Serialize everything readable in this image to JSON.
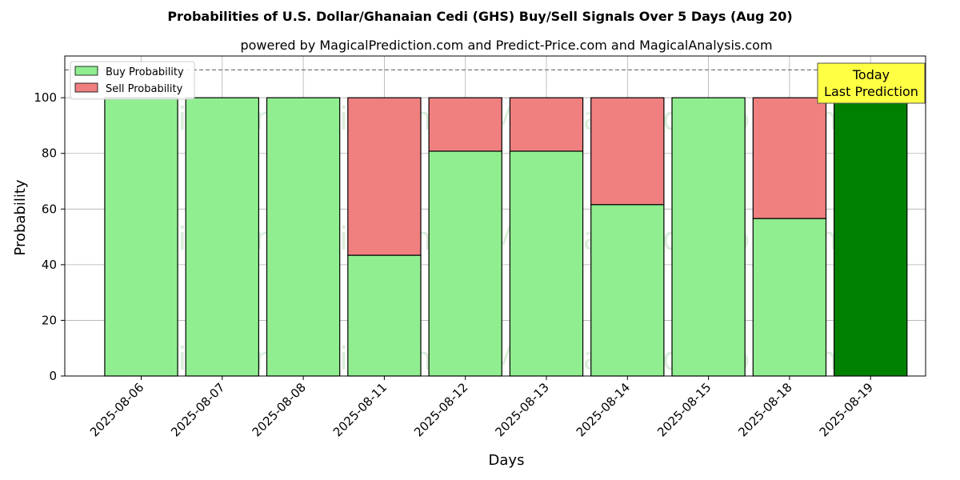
{
  "chart_data": {
    "type": "bar",
    "stacked": true,
    "title": "Probabilities of U.S. Dollar/Ghanaian Cedi (GHS) Buy/Sell Signals Over 5 Days (Aug 20)",
    "subtitle": "powered by MagicalPrediction.com and Predict-Price.com and MagicalAnalysis.com",
    "xlabel": "Days",
    "ylabel": "Probability",
    "ylim": [
      0,
      115
    ],
    "yticks": [
      0,
      20,
      40,
      60,
      80,
      100
    ],
    "reference_line": 110,
    "grid": true,
    "legend_position": "top-left",
    "categories": [
      "2025-08-06",
      "2025-08-07",
      "2025-08-08",
      "2025-08-11",
      "2025-08-12",
      "2025-08-13",
      "2025-08-14",
      "2025-08-15",
      "2025-08-18",
      "2025-08-19"
    ],
    "series": [
      {
        "name": "Buy Probability",
        "color": "#90ee90",
        "values": [
          100,
          100,
          100,
          43.4,
          80.8,
          80.8,
          61.6,
          100,
          56.6,
          100
        ]
      },
      {
        "name": "Sell Probability",
        "color": "#f08080",
        "values": [
          0,
          0,
          0,
          56.6,
          19.2,
          19.2,
          38.4,
          0,
          43.4,
          0
        ]
      }
    ],
    "highlight": {
      "category": "2025-08-19",
      "color": "#008000",
      "label_line1": "Today",
      "label_line2": "Last Prediction",
      "label_color": "#ffff44"
    },
    "watermarks": [
      "MagicalAnalysis.com",
      "MagicalPrediction.com"
    ]
  }
}
